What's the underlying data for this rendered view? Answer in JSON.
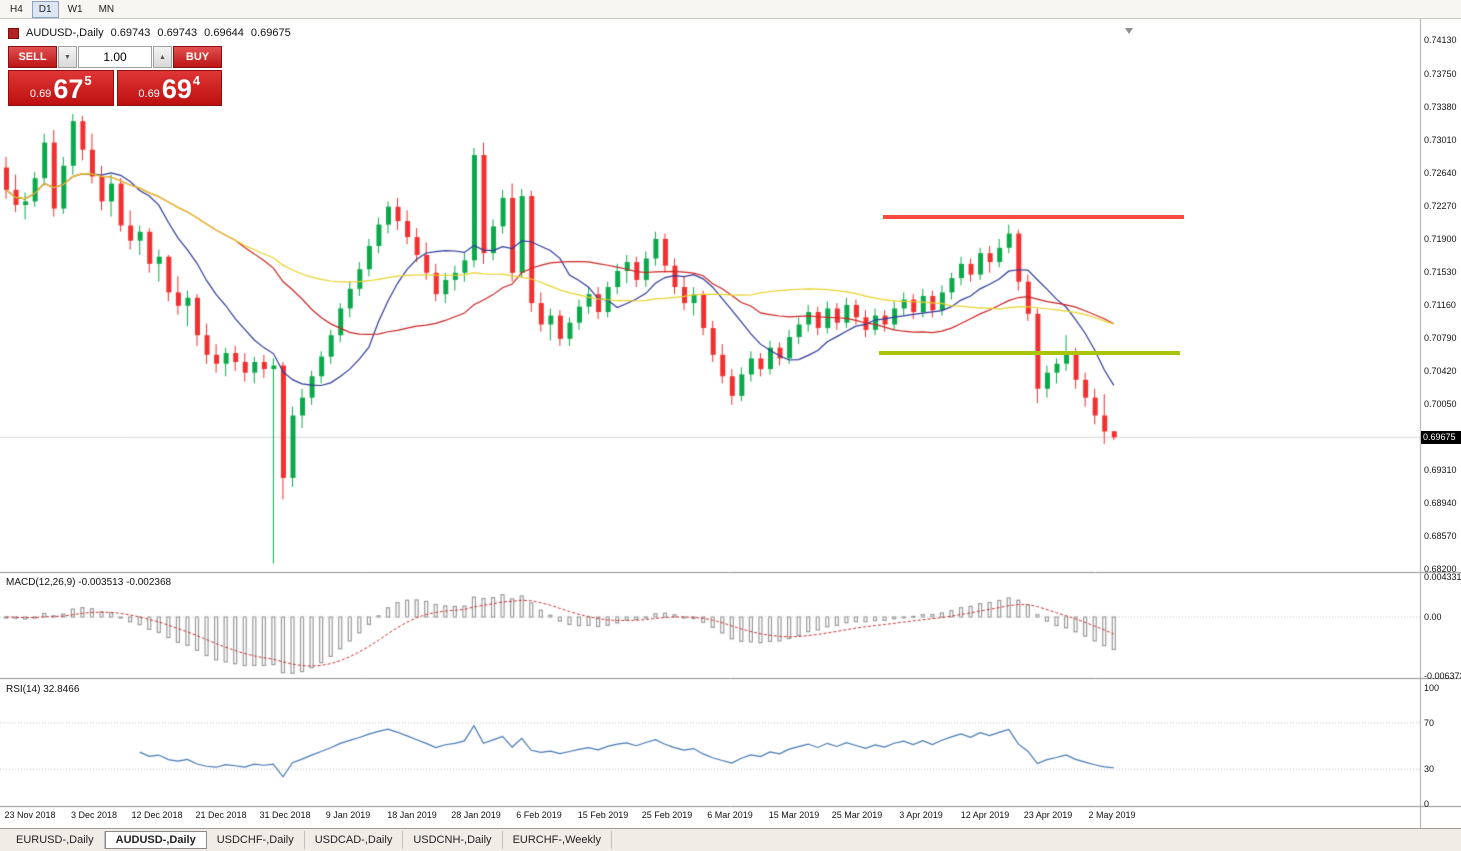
{
  "toolbar": {
    "timeframes": [
      {
        "label": "H4",
        "active": false
      },
      {
        "label": "D1",
        "active": true
      },
      {
        "label": "W1",
        "active": false
      },
      {
        "label": "MN",
        "active": false
      }
    ]
  },
  "chart_header": {
    "symbol": "AUDUSD-,Daily",
    "open": "0.69743",
    "high": "0.69743",
    "low": "0.69644",
    "close": "0.69675"
  },
  "trade_panel": {
    "sell_label": "SELL",
    "buy_label": "BUY",
    "volume": "1.00",
    "bid_small": "0.69",
    "bid_big": "67",
    "bid_sup": "5",
    "ask_small": "0.69",
    "ask_big": "69",
    "ask_sup": "4"
  },
  "icons": {
    "volume_down_icon": "▼",
    "volume_up_icon": "▲"
  },
  "price_axis": {
    "current_price": "0.69675"
  },
  "macd_panel": {
    "label": "MACD(12,26,9) -0.003513 -0.002368"
  },
  "rsi_panel": {
    "label": "RSI(14) 32.8466"
  },
  "annotations": {
    "resistance_line": {
      "price": 0.7214,
      "color": "#f94a40"
    },
    "support_line": {
      "price": 0.7062,
      "color": "#a9c40a"
    }
  },
  "tab_bar": {
    "tabs": [
      {
        "label": "EURUSD-,Daily",
        "active": false
      },
      {
        "label": "AUDUSD-,Daily",
        "active": true
      },
      {
        "label": "USDCHF-,Daily",
        "active": false
      },
      {
        "label": "USDCAD-,Daily",
        "active": false
      },
      {
        "label": "USDCNH-,Daily",
        "active": false
      },
      {
        "label": "EURCHF-,Weekly",
        "active": false
      }
    ]
  },
  "chart_data": {
    "type": "candlestick",
    "title": "AUDUSD-,Daily",
    "ylim": [
      0.682,
      0.7413
    ],
    "last_price": 0.69675,
    "up_color": "#0ca94c",
    "down_color": "#f23030",
    "y_tick_labels": [
      "0.74130",
      "0.73750",
      "0.73380",
      "0.73010",
      "0.72640",
      "0.72270",
      "0.71900",
      "0.71530",
      "0.71160",
      "0.70790",
      "0.70420",
      "0.70050",
      "0.69310",
      "0.68940",
      "0.68570",
      "0.68200"
    ],
    "x_tick_labels": [
      "23 Nov 2018",
      "3 Dec 2018",
      "12 Dec 2018",
      "21 Dec 2018",
      "31 Dec 2018",
      "9 Jan 2019",
      "18 Jan 2019",
      "28 Jan 2019",
      "6 Feb 2019",
      "15 Feb 2019",
      "25 Feb 2019",
      "6 Mar 2019",
      "15 Mar 2019",
      "25 Mar 2019",
      "3 Apr 2019",
      "12 Apr 2019",
      "23 Apr 2019",
      "2 May 2019"
    ],
    "overlays": [
      {
        "name": "MA fast",
        "period": 10,
        "color": "#2c3a9c"
      },
      {
        "name": "MA medium",
        "period": 25,
        "color": "#cc2525"
      },
      {
        "name": "MA slow",
        "period": 50,
        "color": "#e9d22b"
      }
    ],
    "macd": {
      "params": "12,26,9",
      "value": -0.003513,
      "signal": -0.002368,
      "y_tick_labels": [
        "0.004331",
        "0.00",
        "-0.006373"
      ],
      "histogram_color": "#9a9a9a",
      "signal_color": "#cc3333"
    },
    "rsi": {
      "period": 14,
      "value": 32.8466,
      "y_tick_labels": [
        "100",
        "70",
        "30",
        "0"
      ],
      "levels": [
        70,
        30
      ],
      "line_color": "#4577b5"
    },
    "candles": [
      [
        0.727,
        0.7282,
        0.7235,
        0.7245
      ],
      [
        0.7245,
        0.7262,
        0.722,
        0.7228
      ],
      [
        0.7228,
        0.7242,
        0.7212,
        0.7232
      ],
      [
        0.7232,
        0.7265,
        0.7226,
        0.7258
      ],
      [
        0.7258,
        0.7308,
        0.725,
        0.7298
      ],
      [
        0.7298,
        0.7312,
        0.7215,
        0.7224
      ],
      [
        0.7224,
        0.7282,
        0.7218,
        0.7272
      ],
      [
        0.7272,
        0.733,
        0.7262,
        0.7322
      ],
      [
        0.7322,
        0.7328,
        0.7278,
        0.729
      ],
      [
        0.729,
        0.7308,
        0.7252,
        0.726
      ],
      [
        0.726,
        0.7272,
        0.7222,
        0.7232
      ],
      [
        0.7232,
        0.7262,
        0.7215,
        0.7252
      ],
      [
        0.7252,
        0.7258,
        0.7198,
        0.7205
      ],
      [
        0.7205,
        0.7222,
        0.7178,
        0.7188
      ],
      [
        0.7188,
        0.7205,
        0.7172,
        0.7198
      ],
      [
        0.7198,
        0.7202,
        0.7152,
        0.7162
      ],
      [
        0.7162,
        0.7178,
        0.7142,
        0.717
      ],
      [
        0.717,
        0.7172,
        0.712,
        0.713
      ],
      [
        0.713,
        0.7148,
        0.7105,
        0.7115
      ],
      [
        0.7115,
        0.7132,
        0.7092,
        0.7124
      ],
      [
        0.7124,
        0.7128,
        0.707,
        0.7082
      ],
      [
        0.7082,
        0.7095,
        0.705,
        0.706
      ],
      [
        0.706,
        0.7072,
        0.704,
        0.705
      ],
      [
        0.705,
        0.7068,
        0.7036,
        0.7062
      ],
      [
        0.7062,
        0.707,
        0.7042,
        0.7052
      ],
      [
        0.7052,
        0.7062,
        0.703,
        0.704
      ],
      [
        0.704,
        0.7058,
        0.7028,
        0.7052
      ],
      [
        0.7052,
        0.706,
        0.7034,
        0.7044
      ],
      [
        0.7044,
        0.7056,
        0.6826,
        0.7048
      ],
      [
        0.7048,
        0.7052,
        0.6898,
        0.6922
      ],
      [
        0.6922,
        0.7002,
        0.6912,
        0.6992
      ],
      [
        0.6992,
        0.7022,
        0.6978,
        0.7012
      ],
      [
        0.7012,
        0.7042,
        0.7004,
        0.7036
      ],
      [
        0.7036,
        0.7064,
        0.7028,
        0.7058
      ],
      [
        0.7058,
        0.7088,
        0.705,
        0.7082
      ],
      [
        0.7082,
        0.7118,
        0.7074,
        0.7112
      ],
      [
        0.7112,
        0.7142,
        0.7102,
        0.7134
      ],
      [
        0.7134,
        0.7164,
        0.7126,
        0.7156
      ],
      [
        0.7156,
        0.719,
        0.7148,
        0.7182
      ],
      [
        0.7182,
        0.7214,
        0.7174,
        0.7206
      ],
      [
        0.7206,
        0.7232,
        0.7196,
        0.7226
      ],
      [
        0.7226,
        0.7236,
        0.72,
        0.721
      ],
      [
        0.721,
        0.7222,
        0.7184,
        0.7192
      ],
      [
        0.7192,
        0.7202,
        0.7164,
        0.7172
      ],
      [
        0.7172,
        0.7186,
        0.7144,
        0.7152
      ],
      [
        0.7152,
        0.7162,
        0.712,
        0.7128
      ],
      [
        0.7128,
        0.7152,
        0.7118,
        0.7144
      ],
      [
        0.7144,
        0.716,
        0.7132,
        0.7152
      ],
      [
        0.7152,
        0.7174,
        0.7142,
        0.7166
      ],
      [
        0.7166,
        0.7292,
        0.7158,
        0.7284
      ],
      [
        0.7284,
        0.7298,
        0.7162,
        0.7174
      ],
      [
        0.7174,
        0.7212,
        0.7166,
        0.7204
      ],
      [
        0.7204,
        0.7245,
        0.7196,
        0.7236
      ],
      [
        0.7236,
        0.7252,
        0.7142,
        0.7152
      ],
      [
        0.7152,
        0.7246,
        0.7146,
        0.7238
      ],
      [
        0.7238,
        0.7244,
        0.7108,
        0.7118
      ],
      [
        0.7118,
        0.713,
        0.7086,
        0.7094
      ],
      [
        0.7094,
        0.7112,
        0.7076,
        0.7104
      ],
      [
        0.7104,
        0.711,
        0.707,
        0.7078
      ],
      [
        0.7078,
        0.7102,
        0.707,
        0.7096
      ],
      [
        0.7096,
        0.7122,
        0.7088,
        0.7114
      ],
      [
        0.7114,
        0.7136,
        0.7106,
        0.7128
      ],
      [
        0.7128,
        0.7136,
        0.71,
        0.7108
      ],
      [
        0.7108,
        0.7142,
        0.7102,
        0.7136
      ],
      [
        0.7136,
        0.7162,
        0.7128,
        0.7154
      ],
      [
        0.7154,
        0.7172,
        0.714,
        0.7164
      ],
      [
        0.7164,
        0.717,
        0.7136,
        0.7144
      ],
      [
        0.7144,
        0.7176,
        0.7136,
        0.7168
      ],
      [
        0.7168,
        0.7198,
        0.716,
        0.719
      ],
      [
        0.719,
        0.7196,
        0.7152,
        0.716
      ],
      [
        0.716,
        0.7168,
        0.7128,
        0.7136
      ],
      [
        0.7136,
        0.7148,
        0.711,
        0.7118
      ],
      [
        0.7118,
        0.7136,
        0.7104,
        0.7128
      ],
      [
        0.7128,
        0.7132,
        0.7082,
        0.709
      ],
      [
        0.709,
        0.7098,
        0.7052,
        0.706
      ],
      [
        0.706,
        0.7072,
        0.7028,
        0.7036
      ],
      [
        0.7036,
        0.7044,
        0.7004,
        0.7014
      ],
      [
        0.7014,
        0.7046,
        0.7008,
        0.7038
      ],
      [
        0.7038,
        0.7064,
        0.703,
        0.7056
      ],
      [
        0.7056,
        0.7062,
        0.7036,
        0.7044
      ],
      [
        0.7044,
        0.7076,
        0.7038,
        0.7068
      ],
      [
        0.7068,
        0.7074,
        0.7048,
        0.7056
      ],
      [
        0.7056,
        0.7088,
        0.705,
        0.708
      ],
      [
        0.708,
        0.7102,
        0.7072,
        0.7094
      ],
      [
        0.7094,
        0.7116,
        0.7086,
        0.7108
      ],
      [
        0.7108,
        0.7114,
        0.7082,
        0.709
      ],
      [
        0.709,
        0.712,
        0.7084,
        0.7112
      ],
      [
        0.7112,
        0.7118,
        0.7088,
        0.7096
      ],
      [
        0.7096,
        0.7124,
        0.709,
        0.7116
      ],
      [
        0.7116,
        0.7122,
        0.7094,
        0.7102
      ],
      [
        0.7102,
        0.711,
        0.708,
        0.7088
      ],
      [
        0.7088,
        0.7112,
        0.7082,
        0.7104
      ],
      [
        0.7104,
        0.711,
        0.7086,
        0.7094
      ],
      [
        0.7094,
        0.712,
        0.7088,
        0.7112
      ],
      [
        0.7112,
        0.713,
        0.7104,
        0.7122
      ],
      [
        0.7122,
        0.7128,
        0.71,
        0.7108
      ],
      [
        0.7108,
        0.7134,
        0.7102,
        0.7126
      ],
      [
        0.7126,
        0.7132,
        0.7102,
        0.711
      ],
      [
        0.711,
        0.7138,
        0.7104,
        0.713
      ],
      [
        0.713,
        0.7152,
        0.7122,
        0.7146
      ],
      [
        0.7146,
        0.717,
        0.7138,
        0.7162
      ],
      [
        0.7162,
        0.7168,
        0.7142,
        0.715
      ],
      [
        0.715,
        0.718,
        0.7144,
        0.7174
      ],
      [
        0.7174,
        0.7182,
        0.7152,
        0.7164
      ],
      [
        0.7164,
        0.719,
        0.7158,
        0.718
      ],
      [
        0.718,
        0.7206,
        0.7174,
        0.7196
      ],
      [
        0.7196,
        0.72,
        0.7132,
        0.7142
      ],
      [
        0.7142,
        0.715,
        0.7098,
        0.7106
      ],
      [
        0.7106,
        0.7112,
        0.7006,
        0.7022
      ],
      [
        0.7022,
        0.7048,
        0.7012,
        0.704
      ],
      [
        0.704,
        0.7056,
        0.7028,
        0.705
      ],
      [
        0.705,
        0.7082,
        0.7042,
        0.7062
      ],
      [
        0.7062,
        0.7068,
        0.7022,
        0.7032
      ],
      [
        0.7032,
        0.704,
        0.7002,
        0.7012
      ],
      [
        0.7012,
        0.7022,
        0.6982,
        0.6992
      ],
      [
        0.6992,
        0.7016,
        0.696,
        0.6974
      ],
      [
        0.69743,
        0.69743,
        0.69644,
        0.69675
      ]
    ]
  }
}
